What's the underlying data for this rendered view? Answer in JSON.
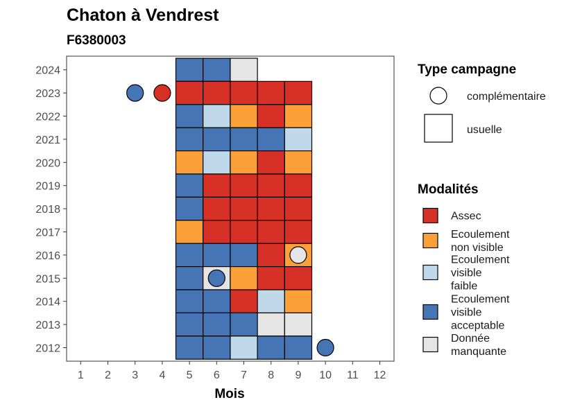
{
  "chart_data": {
    "type": "heatmap",
    "title": "Chaton à Vendrest",
    "subtitle": "F6380003",
    "xlabel": "Mois",
    "ylabel": "",
    "x_ticks": [
      1,
      2,
      3,
      4,
      5,
      6,
      7,
      8,
      9,
      10,
      11,
      12
    ],
    "y_ticks": [
      2012,
      2013,
      2014,
      2015,
      2016,
      2017,
      2018,
      2019,
      2020,
      2021,
      2022,
      2023,
      2024
    ],
    "grid": false,
    "legend_position": "right",
    "modalites": [
      {
        "key": "assec",
        "label": [
          "Assec"
        ],
        "color": "#D73027"
      },
      {
        "key": "nv",
        "label": [
          "Ecoulement",
          "non visible"
        ],
        "color": "#FDA037"
      },
      {
        "key": "vf",
        "label": [
          "Ecoulement",
          "visible",
          "faible"
        ],
        "color": "#BFD9EA"
      },
      {
        "key": "va",
        "label": [
          "Ecoulement",
          "visible",
          "acceptable"
        ],
        "color": "#4575B4"
      },
      {
        "key": "dm",
        "label": [
          "Donnée",
          "manquante"
        ],
        "color": "#E5E5E5"
      }
    ],
    "campagne_types": [
      {
        "key": "complementaire",
        "label": "complémentaire",
        "shape": "circle"
      },
      {
        "key": "usuelle",
        "label": "usuelle",
        "shape": "square"
      }
    ],
    "legend_titles": {
      "campagne": "Type campagne",
      "modalites": "Modalités"
    },
    "usuelle": [
      {
        "year": 2024,
        "months": [
          5,
          6,
          7
        ],
        "values": [
          "va",
          "va",
          "dm"
        ]
      },
      {
        "year": 2023,
        "months": [
          5,
          6,
          7,
          8,
          9
        ],
        "values": [
          "assec",
          "assec",
          "assec",
          "assec",
          "assec"
        ]
      },
      {
        "year": 2022,
        "months": [
          5,
          6,
          7,
          8,
          9
        ],
        "values": [
          "va",
          "vf",
          "nv",
          "assec",
          "nv"
        ]
      },
      {
        "year": 2021,
        "months": [
          5,
          6,
          7,
          8,
          9
        ],
        "values": [
          "va",
          "va",
          "va",
          "va",
          "vf"
        ]
      },
      {
        "year": 2020,
        "months": [
          5,
          6,
          7,
          8,
          9
        ],
        "values": [
          "nv",
          "vf",
          "nv",
          "assec",
          "nv"
        ]
      },
      {
        "year": 2019,
        "months": [
          5,
          6,
          7,
          8,
          9
        ],
        "values": [
          "va",
          "assec",
          "assec",
          "assec",
          "assec"
        ]
      },
      {
        "year": 2018,
        "months": [
          5,
          6,
          7,
          8,
          9
        ],
        "values": [
          "va",
          "assec",
          "assec",
          "assec",
          "assec"
        ]
      },
      {
        "year": 2017,
        "months": [
          5,
          6,
          7,
          8,
          9
        ],
        "values": [
          "nv",
          "assec",
          "assec",
          "assec",
          "assec"
        ]
      },
      {
        "year": 2016,
        "months": [
          5,
          6,
          7,
          8,
          9
        ],
        "values": [
          "va",
          "va",
          "va",
          "assec",
          "nv"
        ]
      },
      {
        "year": 2015,
        "months": [
          5,
          6,
          7,
          8,
          9
        ],
        "values": [
          "va",
          "dm",
          "nv",
          "assec",
          "assec"
        ]
      },
      {
        "year": 2014,
        "months": [
          5,
          6,
          7,
          8,
          9
        ],
        "values": [
          "va",
          "va",
          "assec",
          "vf",
          "nv"
        ]
      },
      {
        "year": 2013,
        "months": [
          5,
          6,
          7,
          8,
          9
        ],
        "values": [
          "va",
          "va",
          "va",
          "dm",
          "dm"
        ]
      },
      {
        "year": 2012,
        "months": [
          5,
          6,
          7,
          8,
          9
        ],
        "values": [
          "va",
          "va",
          "vf",
          "va",
          "va"
        ]
      }
    ],
    "complementaire": [
      {
        "year": 2023,
        "month": 3,
        "value": "va"
      },
      {
        "year": 2023,
        "month": 4,
        "value": "assec"
      },
      {
        "year": 2016,
        "month": 9,
        "value": "dm"
      },
      {
        "year": 2015,
        "month": 6,
        "value": "va"
      },
      {
        "year": 2012,
        "month": 10,
        "value": "va"
      }
    ]
  }
}
